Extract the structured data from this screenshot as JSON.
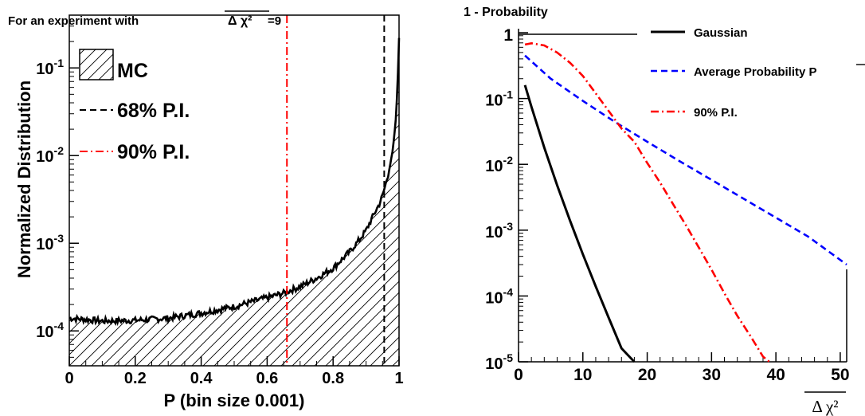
{
  "chart_data": [
    {
      "type": "area",
      "title": "For an experiment with",
      "title_symbol": "Δ χ²",
      "title_value": "=9",
      "xlabel": "P (bin size 0.001)",
      "ylabel": "Normalized Distribution",
      "x_scale": "linear",
      "y_scale": "log",
      "xlim": [
        0,
        1
      ],
      "ylim": [
        4e-05,
        0.4
      ],
      "x_ticks": [
        0,
        0.2,
        0.4,
        0.6,
        0.8,
        1
      ],
      "x_tick_labels": [
        "0",
        "0.2",
        "0.4",
        "0.6",
        "0.8",
        "1"
      ],
      "y_ticks": [
        0.0001,
        0.001,
        0.01,
        0.1
      ],
      "y_tick_mantissa": "10",
      "y_tick_exponents": [
        "-4",
        "-3",
        "-2",
        "-1"
      ],
      "legend_position": "top-left",
      "legend": [
        {
          "label": "MC",
          "style": "hatched-fill",
          "color": "#000000"
        },
        {
          "label": "68% P.I.",
          "style": "dashed",
          "color": "#000000"
        },
        {
          "label": "90% P.I.",
          "style": "dash-dot",
          "color": "#ff0000"
        }
      ],
      "series": [
        {
          "name": "MC",
          "x": [
            0,
            0.05,
            0.1,
            0.2,
            0.3,
            0.4,
            0.5,
            0.6,
            0.65,
            0.7,
            0.75,
            0.8,
            0.85,
            0.88,
            0.9,
            0.92,
            0.94,
            0.95,
            0.96,
            0.97,
            0.98,
            0.985,
            0.99,
            0.995,
            1.0
          ],
          "y": [
            0.00014,
            0.000135,
            0.00013,
            0.000132,
            0.00014,
            0.00016,
            0.00019,
            0.00024,
            0.00027,
            0.00032,
            0.0004,
            0.00052,
            0.0008,
            0.0011,
            0.0014,
            0.002,
            0.0028,
            0.0035,
            0.0048,
            0.0068,
            0.011,
            0.016,
            0.026,
            0.055,
            0.22
          ]
        }
      ],
      "vertical_lines": [
        {
          "name": "68% P.I.",
          "x": 0.955,
          "style": "dashed",
          "color": "#000000"
        },
        {
          "name": "90% P.I.",
          "x": 0.66,
          "style": "dash-dot",
          "color": "#ff0000"
        }
      ]
    },
    {
      "type": "line",
      "title": "1 - Probability",
      "xlabel_symbol": "Δ χ²",
      "x_scale": "linear",
      "y_scale": "log",
      "xlim": [
        0,
        51
      ],
      "ylim": [
        1e-05,
        1.15
      ],
      "x_ticks": [
        0,
        10,
        20,
        30,
        40,
        50
      ],
      "x_tick_labels": [
        "0",
        "10",
        "20",
        "30",
        "40",
        "50"
      ],
      "y_ticks": [
        1e-05,
        0.0001,
        0.001,
        0.01,
        0.1,
        1
      ],
      "y_tick_first_label": "1",
      "y_tick_mantissa": "10",
      "y_tick_exponents": [
        "-5",
        "-4",
        "-3",
        "-2",
        "-1"
      ],
      "legend_position": "top-right",
      "legend": [
        {
          "label": "Gaussian",
          "style": "solid",
          "color": "#000000"
        },
        {
          "label": "Average Probability ",
          "label_symbol": "P",
          "style": "dashed",
          "color": "#0000ff"
        },
        {
          "label": "90% P.I.",
          "style": "dash-dot",
          "color": "#ff0000"
        }
      ],
      "series": [
        {
          "name": "Gaussian",
          "color": "#000000",
          "style": "solid",
          "x": [
            1,
            2,
            4,
            6,
            8,
            10,
            12,
            14,
            16,
            18
          ],
          "y": [
            0.16,
            0.075,
            0.018,
            0.0048,
            0.0014,
            0.00043,
            0.00014,
            4.7e-05,
            1.6e-05,
            5.5e-06
          ]
        },
        {
          "name": "Average Probability P",
          "color": "#0000ff",
          "style": "dashed",
          "x": [
            1,
            5,
            10,
            15,
            20,
            25,
            30,
            35,
            40,
            45,
            51
          ],
          "y": [
            0.45,
            0.2,
            0.092,
            0.044,
            0.022,
            0.0112,
            0.0058,
            0.003,
            0.00155,
            0.0008,
            0.0003
          ]
        },
        {
          "name": "90% P.I.",
          "color": "#ff0000",
          "style": "dash-dot",
          "x": [
            1,
            2,
            4,
            6,
            8,
            10,
            12,
            14,
            16,
            18,
            20,
            22,
            24,
            26,
            28,
            30,
            32,
            34,
            36,
            38,
            39
          ],
          "y": [
            0.66,
            0.69,
            0.64,
            0.5,
            0.35,
            0.22,
            0.12,
            0.065,
            0.035,
            0.022,
            0.0105,
            0.0053,
            0.0025,
            0.0012,
            0.00055,
            0.00025,
            0.00011,
            5e-05,
            2.5e-05,
            1.2e-05,
            8.5e-06
          ]
        }
      ]
    }
  ]
}
